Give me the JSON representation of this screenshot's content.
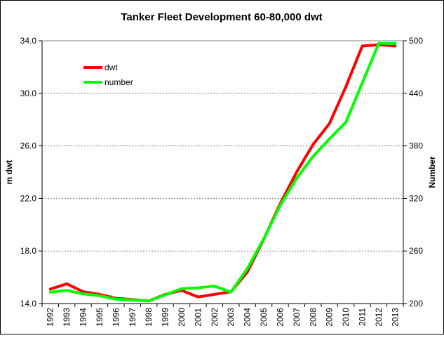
{
  "chart_data": {
    "type": "line",
    "title": "Tanker Fleet Development 60-80,000 dwt",
    "ylabel_left": "m dwt",
    "ylabel_right": "Number",
    "ylim_left": [
      14.0,
      34.0
    ],
    "ylim_right": [
      200,
      500
    ],
    "yticks_left": [
      "14.0",
      "18.0",
      "22.0",
      "26.0",
      "30.0",
      "34.0"
    ],
    "yticks_right": [
      "200",
      "260",
      "320",
      "380",
      "440",
      "500"
    ],
    "categories": [
      "1992",
      "1993",
      "1994",
      "1995",
      "1996",
      "1997",
      "1998",
      "1999",
      "2000",
      "2001",
      "2002",
      "2003",
      "2004",
      "2005",
      "2006",
      "2007",
      "2008",
      "2009",
      "2010",
      "2011",
      "2012",
      "2013"
    ],
    "grid": "horizontal",
    "legend_position": "top-left",
    "series": [
      {
        "name": "dwt",
        "axis": "left",
        "color": "#ff0000",
        "values": [
          15.1,
          15.5,
          14.9,
          14.7,
          14.4,
          14.3,
          14.2,
          14.7,
          15.0,
          14.5,
          14.7,
          14.9,
          16.4,
          18.9,
          21.6,
          24.0,
          26.1,
          27.7,
          30.5,
          33.6,
          33.7,
          33.6
        ]
      },
      {
        "name": "number",
        "axis": "right",
        "color": "#00ff00",
        "values": [
          213,
          215,
          211,
          209,
          205,
          204,
          203,
          210,
          217,
          218,
          220,
          213,
          240,
          274,
          312,
          343,
          368,
          388,
          407,
          452,
          497,
          497
        ]
      }
    ]
  }
}
